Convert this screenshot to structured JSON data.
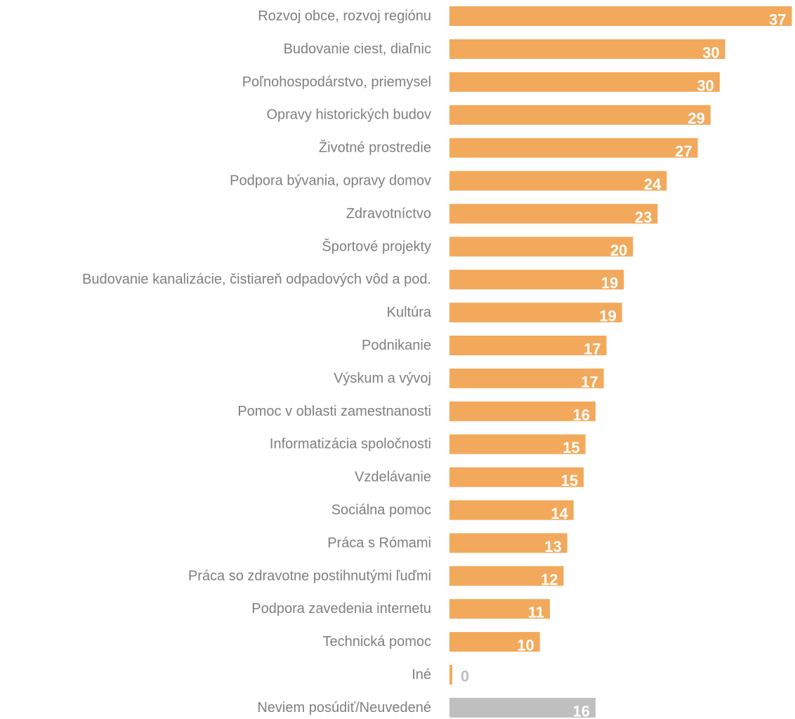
{
  "chart_data": {
    "type": "bar",
    "orientation": "horizontal",
    "title": "",
    "xlabel": "",
    "ylabel": "",
    "grid": false,
    "legend": "none",
    "xlim": [
      0,
      37
    ],
    "categories": [
      "Rozvoj obce, rozvoj regiónu",
      "Budovanie ciest, diaľnic",
      "Poľnohospodárstvo, priemysel",
      "Opravy historických budov",
      "Životné prostredie",
      "Podpora bývania, opravy domov",
      "Zdravotníctvo",
      "Športové projekty",
      "Budovanie kanalizácie, čistiareň odpadových vôd a pod.",
      "Kultúra",
      "Podnikanie",
      "Výskum a vývoj",
      "Pomoc v oblasti zamestnanosti",
      "Informatizácia spoločnosti",
      "Vzdelávanie",
      "Sociálna pomoc",
      "Práca s Rómami",
      "Práca so zdravotne postihnutými ľuďmi",
      "Podpora zavedenia internetu",
      "Technická pomoc",
      "Iné",
      "Neviem posúdiť/Neuvedené"
    ],
    "values": [
      37.5,
      30.2,
      29.6,
      28.6,
      27.2,
      23.8,
      22.8,
      20.1,
      19.1,
      18.9,
      17.2,
      16.9,
      16.0,
      14.9,
      14.7,
      13.6,
      12.9,
      12.5,
      11.0,
      9.9,
      0.3,
      16.0
    ],
    "data_labels": [
      "37",
      "30",
      "30",
      "29",
      "27",
      "24",
      "23",
      "20",
      "19",
      "19",
      "17",
      "17",
      "16",
      "15",
      "15",
      "14",
      "13",
      "12",
      "11",
      "10",
      "0",
      "16"
    ],
    "colors": {
      "main": "#F2A95B",
      "last": "#BFBFBF",
      "category_text": "#7F7F7F",
      "value_text_inside": "#FFFFFF",
      "value_text_outside": "#BFBFBF"
    }
  }
}
